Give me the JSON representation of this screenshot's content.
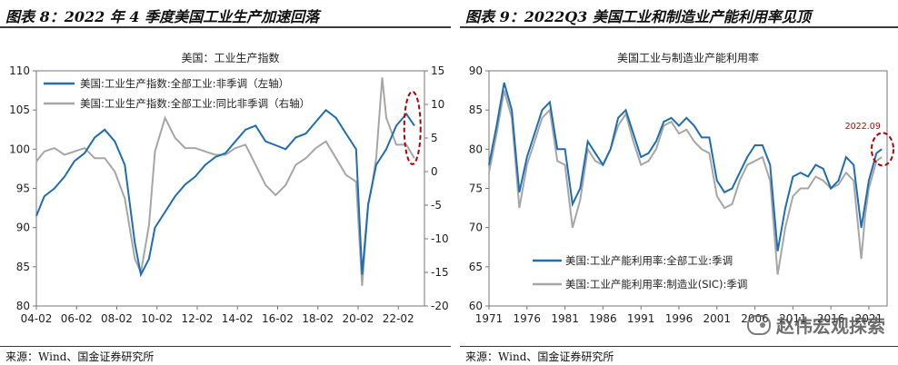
{
  "figures": [
    {
      "title": "图表 8：2022 年 4 季度美国工业生产加速回落",
      "source": "来源：Wind、国金证券研究所"
    },
    {
      "title": "图表 9：2022Q3 美国工业和制造业产能利用率见顶",
      "source": "来源：Wind、国金证券研究所"
    }
  ],
  "watermark": "赵伟宏观探索",
  "chart_data": [
    {
      "type": "line",
      "title": "美国：工业生产指数",
      "x": [
        "04-02",
        "06-02",
        "08-02",
        "10-02",
        "12-02",
        "14-02",
        "16-02",
        "18-02",
        "20-02",
        "22-02"
      ],
      "ylim_left": [
        80,
        110
      ],
      "ylim_right": [
        -20,
        15
      ],
      "yticks_left": [
        "110",
        "105",
        "100",
        "95",
        "90",
        "85",
        "80"
      ],
      "yticks_right": [
        "15",
        "10",
        "5",
        "0",
        "-5",
        "-10",
        "-15",
        "-20"
      ],
      "series": [
        {
          "name": "美国:工业生产指数:全部工业:非季调（左轴）",
          "axis": "left",
          "color": "#1f6db3",
          "x": [
            2004.1,
            2004.5,
            2005,
            2005.5,
            2006,
            2006.5,
            2007,
            2007.5,
            2008,
            2008.5,
            2009,
            2009.3,
            2009.7,
            2010,
            2010.5,
            2011,
            2011.5,
            2012,
            2012.5,
            2013,
            2013.5,
            2014,
            2014.5,
            2015,
            2015.5,
            2016,
            2016.5,
            2017,
            2017.5,
            2018,
            2018.5,
            2019,
            2019.5,
            2020,
            2020.3,
            2020.6,
            2021,
            2021.5,
            2022,
            2022.5,
            2022.9
          ],
          "values": [
            91.5,
            94,
            95,
            96.5,
            98.5,
            99.5,
            101.5,
            102.5,
            101,
            98,
            88,
            84,
            86,
            90,
            92,
            94,
            95.5,
            96.5,
            98,
            99,
            99.5,
            101,
            102.5,
            103,
            101,
            100.5,
            100,
            101.5,
            102,
            103.5,
            105,
            104,
            102,
            100,
            84,
            93,
            98,
            100,
            103,
            104.5,
            103
          ]
        },
        {
          "name": "美国:工业生产指数:全部工业:同比非季调（右轴）",
          "axis": "right",
          "color": "#a6a6a6",
          "x": [
            2004.1,
            2004.5,
            2005,
            2005.5,
            2006,
            2006.5,
            2007,
            2007.5,
            2008,
            2008.5,
            2009,
            2009.3,
            2009.7,
            2010,
            2010.5,
            2011,
            2011.5,
            2012,
            2012.5,
            2013,
            2013.5,
            2014,
            2014.5,
            2015,
            2015.5,
            2016,
            2016.5,
            2017,
            2017.5,
            2018,
            2018.5,
            2019,
            2019.5,
            2020,
            2020.3,
            2020.6,
            2020.8,
            2021,
            2021.3,
            2021.5,
            2022,
            2022.5,
            2022.9
          ],
          "values": [
            1.5,
            3,
            3.5,
            2.5,
            3,
            3.5,
            2,
            2,
            0,
            -4,
            -13,
            -15,
            -8,
            3,
            8,
            5,
            3.5,
            3.5,
            3,
            2.5,
            2.5,
            3.5,
            4,
            1,
            -2,
            -3.5,
            -2,
            1,
            2,
            3.5,
            4.5,
            2,
            -0.5,
            -1.5,
            -17,
            -5,
            -2,
            2,
            14,
            8,
            4,
            4,
            2
          ]
        }
      ]
    },
    {
      "type": "line",
      "title": "美国工业与制造业产能利用率",
      "x": [
        "1971",
        "1976",
        "1981",
        "1986",
        "1991",
        "1996",
        "2001",
        "2006",
        "2011",
        "2016",
        "2021"
      ],
      "ylim": [
        60,
        90
      ],
      "yticks": [
        "90",
        "85",
        "80",
        "75",
        "70",
        "65",
        "60"
      ],
      "annotation": "2022.09",
      "series": [
        {
          "name": "美国:工业产能利用率:全部工业:季调",
          "color": "#1f6db3",
          "x": [
            1971,
            1972,
            1973,
            1974,
            1975,
            1976,
            1977,
            1978,
            1979,
            1980,
            1981,
            1982,
            1983,
            1984,
            1985,
            1986,
            1987,
            1988,
            1989,
            1990,
            1991,
            1992,
            1993,
            1994,
            1995,
            1996,
            1997,
            1998,
            1999,
            2000,
            2001,
            2002,
            2003,
            2004,
            2005,
            2006,
            2007,
            2008,
            2009,
            2010,
            2011,
            2012,
            2013,
            2014,
            2015,
            2016,
            2017,
            2018,
            2019,
            2020,
            2020.5,
            2021,
            2022,
            2022.7
          ],
          "values": [
            78,
            83,
            88.5,
            85,
            74.5,
            79,
            82,
            85,
            86,
            80,
            80,
            73,
            75,
            81,
            79.5,
            78,
            80,
            84,
            85,
            82,
            79,
            79.5,
            81,
            83.5,
            84,
            83,
            84,
            83,
            81.5,
            81.5,
            76,
            74.5,
            75,
            77,
            79,
            80.5,
            80.5,
            78,
            67,
            72.5,
            76.5,
            77,
            76.5,
            78,
            77.5,
            75,
            76,
            79,
            78,
            70,
            73,
            76,
            79.5,
            80
          ]
        },
        {
          "name": "美国:工业产能利用率:制造业(SIC):季调",
          "color": "#a6a6a6",
          "x": [
            1971,
            1972,
            1973,
            1974,
            1975,
            1976,
            1977,
            1978,
            1979,
            1980,
            1981,
            1982,
            1983,
            1984,
            1985,
            1986,
            1987,
            1988,
            1989,
            1990,
            1991,
            1992,
            1993,
            1994,
            1995,
            1996,
            1997,
            1998,
            1999,
            2000,
            2001,
            2002,
            2003,
            2004,
            2005,
            2006,
            2007,
            2008,
            2009,
            2010,
            2011,
            2012,
            2013,
            2014,
            2015,
            2016,
            2017,
            2018,
            2019,
            2020,
            2020.5,
            2021,
            2022,
            2022.7
          ],
          "values": [
            77,
            82,
            87.5,
            84,
            72.5,
            78,
            81,
            84,
            85,
            78.5,
            78,
            70,
            73.5,
            80,
            78.5,
            78,
            80,
            83,
            84.5,
            81,
            78,
            78.5,
            80,
            83,
            83.5,
            82,
            82.5,
            81,
            80,
            79.5,
            74,
            72.5,
            73,
            76,
            78,
            78.5,
            79,
            76,
            64,
            70,
            74,
            75,
            75,
            76.5,
            76,
            75,
            75.5,
            77,
            76,
            66,
            71.5,
            75,
            78.5,
            79
          ]
        }
      ]
    }
  ]
}
